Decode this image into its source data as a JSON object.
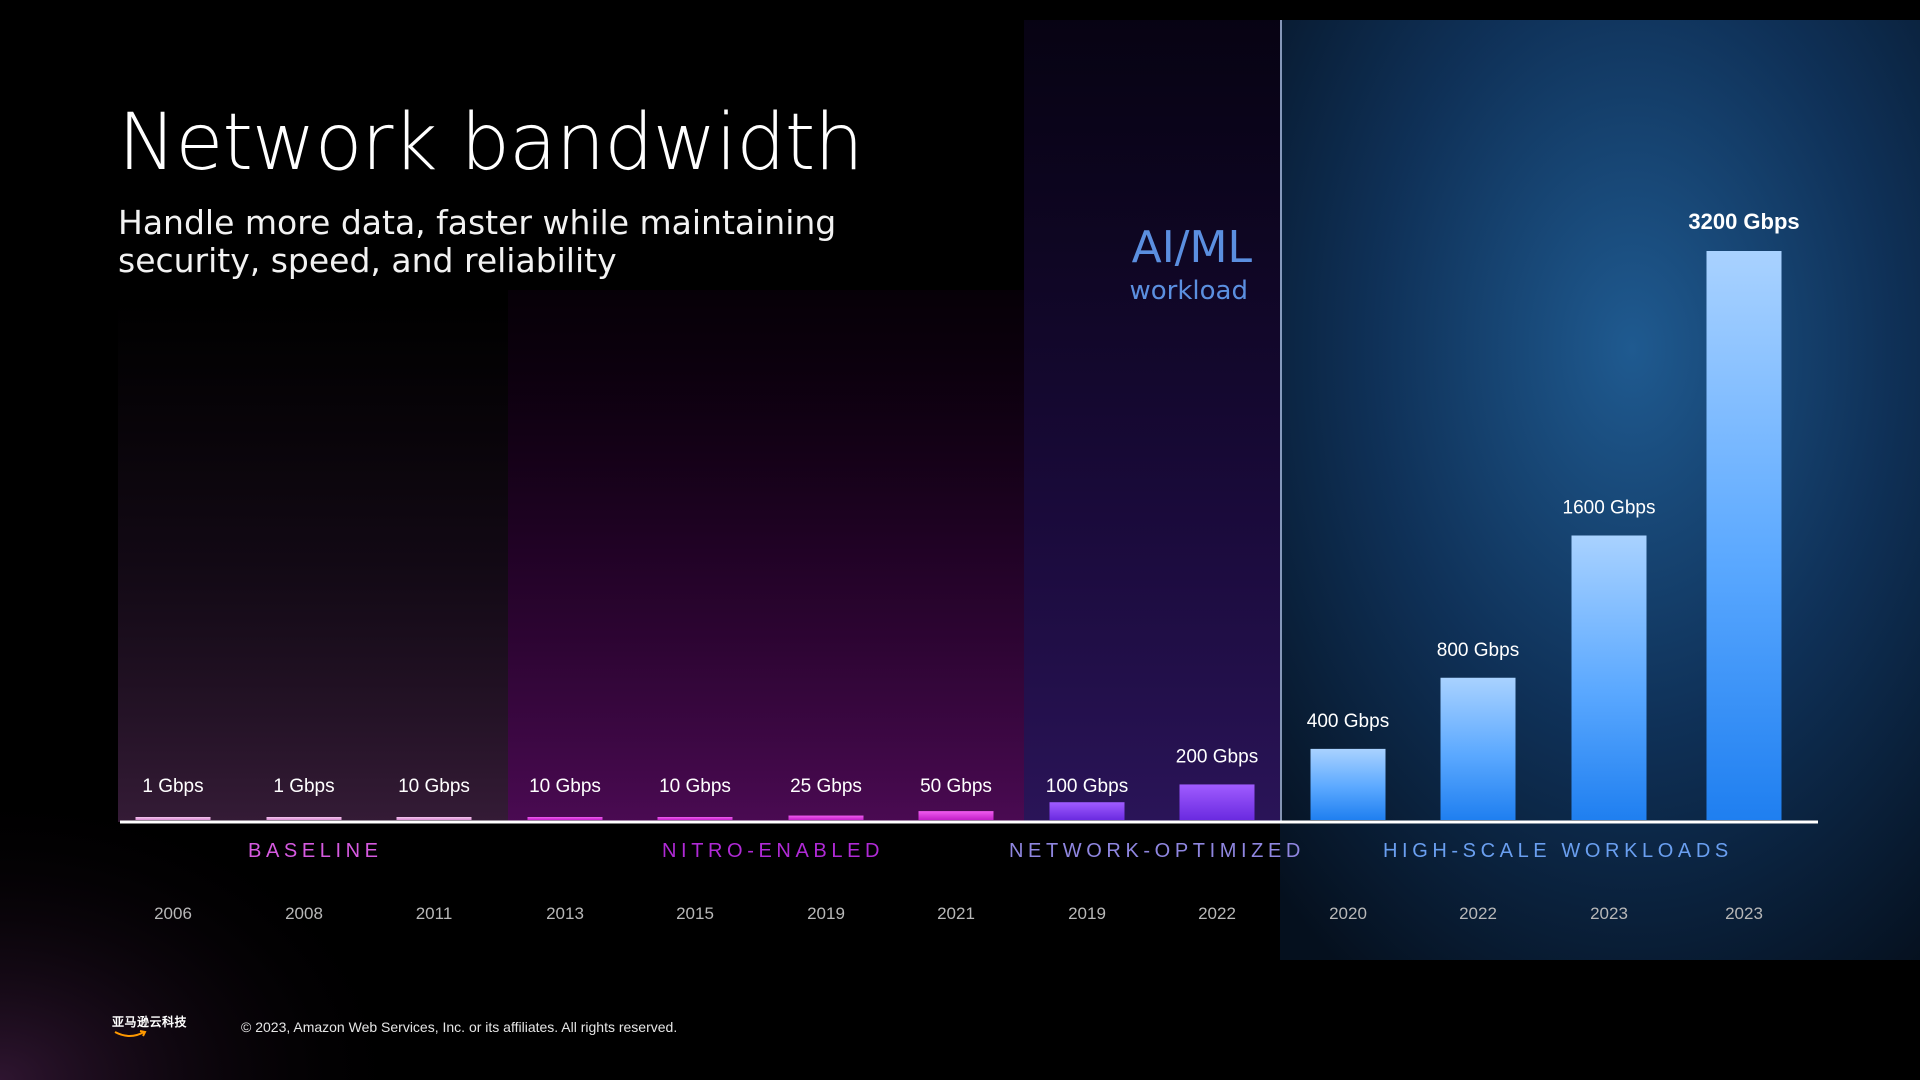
{
  "slide": {
    "title": "Network bandwidth",
    "subtitle": "Handle more data, faster while maintaining security, speed, and reliability",
    "aiml_label": "AI/ML",
    "aiml_sublabel": "workload",
    "footer": "© 2023, Amazon Web Services, Inc. or its affiliates. All rights reserved.",
    "logo_text": "亚马逊云科技"
  },
  "colors": {
    "baseline": "#d65ae0",
    "nitro": "#b02ad6",
    "network_optimized": "#8f86e0",
    "high_scale": "#6a9ff0",
    "aiml_text": "#5b8fe0"
  },
  "chart_data": {
    "type": "bar",
    "title": "Network bandwidth",
    "unit": "Gbps",
    "groups": [
      {
        "name": "BASELINE",
        "color": "#d65ae0",
        "bars": [
          {
            "year": "2006",
            "value": 1,
            "label": "1 Gbps"
          },
          {
            "year": "2008",
            "value": 1,
            "label": "1 Gbps"
          },
          {
            "year": "2011",
            "value": 10,
            "label": "10 Gbps"
          }
        ]
      },
      {
        "name": "NITRO-ENABLED",
        "color": "#b02ad6",
        "bars": [
          {
            "year": "2013",
            "value": 10,
            "label": "10 Gbps"
          },
          {
            "year": "2015",
            "value": 10,
            "label": "10 Gbps"
          },
          {
            "year": "2019",
            "value": 25,
            "label": "25 Gbps"
          },
          {
            "year": "2021",
            "value": 50,
            "label": "50 Gbps"
          }
        ]
      },
      {
        "name": "NETWORK-OPTIMIZED",
        "color": "#8f86e0",
        "bars": [
          {
            "year": "2019",
            "value": 100,
            "label": "100 Gbps"
          },
          {
            "year": "2022",
            "value": 200,
            "label": "200 Gbps"
          }
        ]
      },
      {
        "name": "HIGH-SCALE WORKLOADS",
        "color": "#6a9ff0",
        "bars": [
          {
            "year": "2020",
            "value": 400,
            "label": "400 Gbps"
          },
          {
            "year": "2022",
            "value": 800,
            "label": "800 Gbps"
          },
          {
            "year": "2023",
            "value": 1600,
            "label": "1600 Gbps"
          },
          {
            "year": "2023",
            "value": 3200,
            "label": "3200 Gbps"
          }
        ]
      }
    ],
    "ylim": [
      0,
      3200
    ],
    "grid": false,
    "legend": "none"
  }
}
